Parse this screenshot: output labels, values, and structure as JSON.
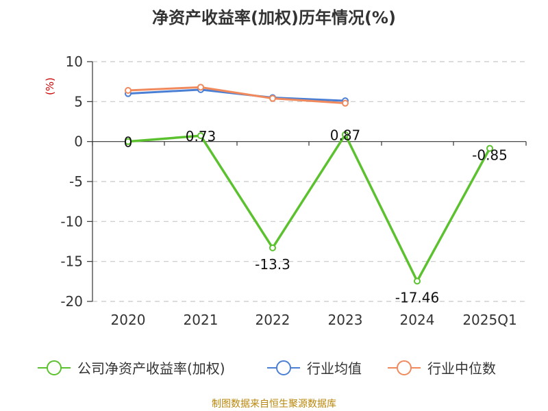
{
  "chart_data": {
    "type": "line",
    "title": "净资产收益率(加权)历年情况(%)",
    "ylabel": "(%)",
    "ylim": [
      -20,
      10
    ],
    "yticks": [
      10,
      5,
      0,
      -5,
      -10,
      -15,
      -20
    ],
    "categories": [
      "2020",
      "2021",
      "2022",
      "2023",
      "2024",
      "2025Q1"
    ],
    "series": [
      {
        "name": "公司净资产收益率(加权)",
        "color": "#5cc12e",
        "values": [
          0,
          0.73,
          -13.3,
          0.87,
          -17.46,
          -0.85
        ],
        "labels": [
          "0",
          "0.73",
          "-13.3",
          "0.87",
          "-17.46",
          "-0.85"
        ]
      },
      {
        "name": "行业均值",
        "color": "#4a7fd4",
        "values": [
          6.0,
          6.5,
          5.5,
          5.1,
          null,
          null
        ]
      },
      {
        "name": "行业中位数",
        "color": "#f08a5d",
        "values": [
          6.4,
          6.8,
          5.4,
          4.8,
          null,
          null
        ]
      }
    ],
    "grid": true,
    "legend": "bottom"
  },
  "footer": {
    "source": "制图数据来自恒生聚源数据库"
  }
}
